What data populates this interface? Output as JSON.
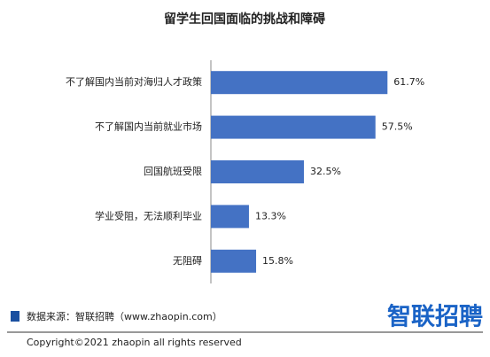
{
  "chart_data": {
    "type": "bar",
    "orientation": "horizontal",
    "title": "留学生回国面临的挑战和障碍",
    "categories": [
      "不了解国内当前对海归人才政策",
      "不了解国内当前就业市场",
      "回国航班受限",
      "学业受阻，无法顺利毕业",
      "无阻碍"
    ],
    "values": [
      61.7,
      57.5,
      32.5,
      13.3,
      15.8
    ],
    "value_labels": [
      "61.7%",
      "57.5%",
      "32.5%",
      "13.3%",
      "15.8%"
    ],
    "color": "#4472c4",
    "source": "数据来源：智联招聘（www.zhaopin.com）",
    "logo": "智联招聘",
    "copyright": "Copyright©2021 zhaopin all rights reserved"
  }
}
